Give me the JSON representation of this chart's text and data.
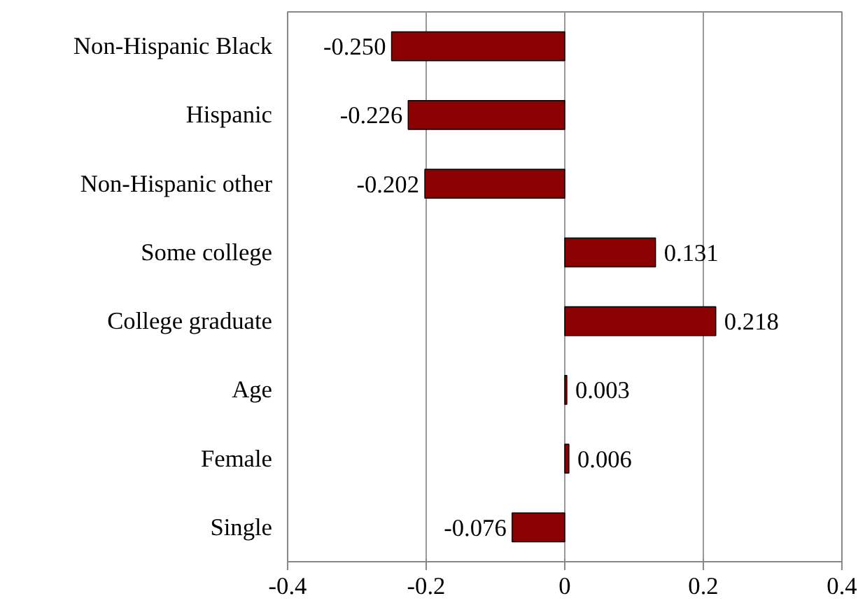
{
  "chart_data": {
    "type": "bar",
    "orientation": "horizontal",
    "categories": [
      "Non-Hispanic Black",
      "Hispanic",
      "Non-Hispanic other",
      "Some college",
      "College graduate",
      "Age",
      "Female",
      "Single"
    ],
    "values": [
      -0.25,
      -0.226,
      -0.202,
      0.131,
      0.218,
      0.003,
      0.006,
      -0.076
    ],
    "value_labels": [
      "-0.250",
      "-0.226",
      "-0.202",
      "0.131",
      "0.218",
      "0.003",
      "0.006",
      "-0.076"
    ],
    "color": "#8b0000",
    "xlim": [
      -0.4,
      0.4
    ],
    "xticks": [
      -0.4,
      -0.2,
      0,
      0.2,
      0.4
    ],
    "grid": "x"
  }
}
